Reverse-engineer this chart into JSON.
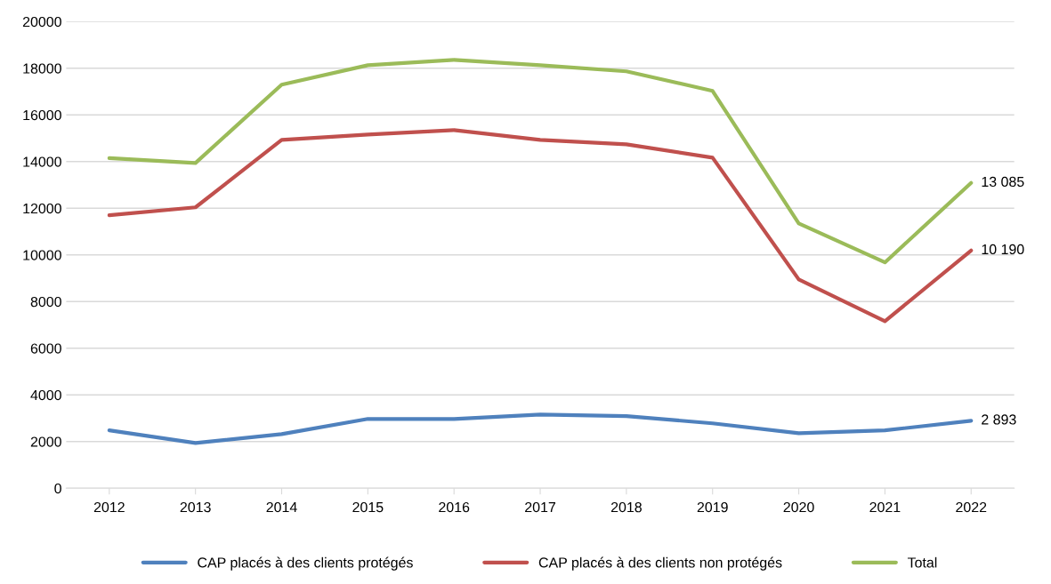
{
  "chart_data": {
    "type": "line",
    "categories": [
      "2012",
      "2013",
      "2014",
      "2015",
      "2016",
      "2017",
      "2018",
      "2019",
      "2020",
      "2021",
      "2022"
    ],
    "series": [
      {
        "name": "CAP placés à des clients protégés",
        "color": "#4f81bd",
        "values": [
          2480,
          1940,
          2320,
          2970,
          2970,
          3160,
          3090,
          2780,
          2360,
          2480,
          2893
        ],
        "value_labels": [
          null,
          null,
          null,
          null,
          null,
          null,
          null,
          null,
          null,
          null,
          "2 893"
        ]
      },
      {
        "name": "CAP placés à des clients non protégés",
        "color": "#c0504d",
        "values": [
          11700,
          12040,
          14930,
          15160,
          15350,
          14930,
          14740,
          14170,
          8950,
          7160,
          10190
        ],
        "value_labels": [
          null,
          null,
          null,
          null,
          null,
          null,
          null,
          null,
          null,
          null,
          "10 190"
        ]
      },
      {
        "name": "Total",
        "color": "#9bbb59",
        "values": [
          14150,
          13940,
          17300,
          18130,
          18360,
          18130,
          17870,
          17030,
          11350,
          9680,
          13085
        ],
        "value_labels": [
          null,
          null,
          null,
          null,
          null,
          null,
          null,
          null,
          null,
          null,
          "13 085"
        ]
      }
    ],
    "ylim": [
      0,
      20000
    ],
    "yticks": [
      0,
      2000,
      4000,
      6000,
      8000,
      10000,
      12000,
      14000,
      16000,
      18000,
      20000
    ],
    "grid": "y",
    "legend": "bottom",
    "marker": "none",
    "line_style": "solid"
  }
}
